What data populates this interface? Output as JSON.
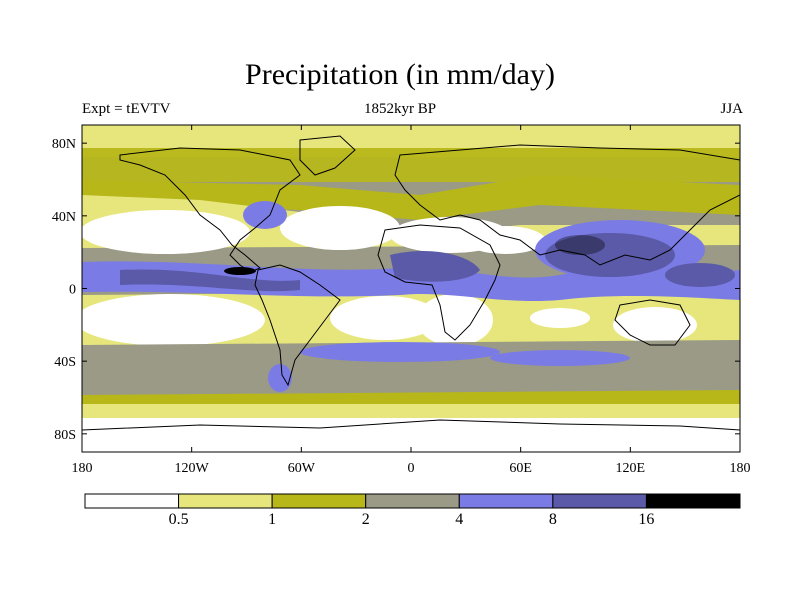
{
  "title": "Precipitation (in mm/day)",
  "subtitle": "1852kyr BP",
  "left_label": "Expt = tEVTV",
  "right_label": "JJA",
  "map": {
    "projection": "cylindrical-equidistant",
    "lon_range": [
      -180,
      180
    ],
    "lat_range": [
      -90,
      90
    ],
    "lat_ticks": [
      {
        "value": 80,
        "label": "80N"
      },
      {
        "value": 40,
        "label": "40N"
      },
      {
        "value": 0,
        "label": "0"
      },
      {
        "value": -40,
        "label": "40S"
      },
      {
        "value": -80,
        "label": "80S"
      }
    ],
    "lon_ticks": [
      {
        "value": -180,
        "label": "180"
      },
      {
        "value": -120,
        "label": "120W"
      },
      {
        "value": -60,
        "label": "60W"
      },
      {
        "value": 0,
        "label": "0"
      },
      {
        "value": 60,
        "label": "60E"
      },
      {
        "value": 120,
        "label": "120E"
      },
      {
        "value": 180,
        "label": "180"
      }
    ]
  },
  "colorbar": {
    "levels": [
      "0.5",
      "1",
      "2",
      "4",
      "8",
      "16"
    ],
    "colors": [
      "#ffffff",
      "#e6e67d",
      "#b7b71a",
      "#9a9a86",
      "#7b7be6",
      "#5a5aa8",
      "#000000"
    ]
  }
}
